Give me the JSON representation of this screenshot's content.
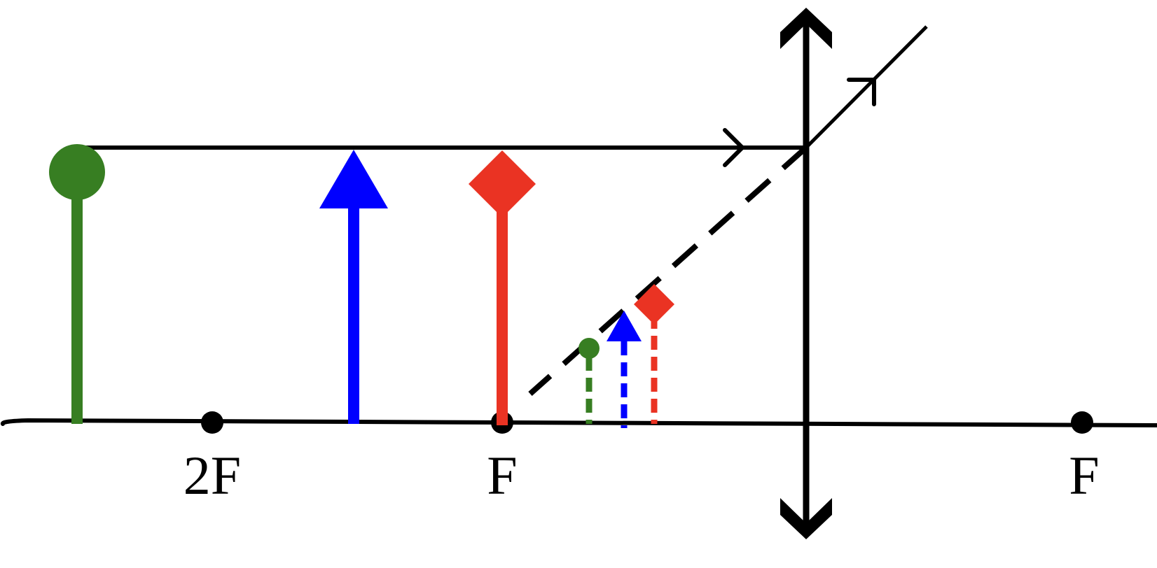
{
  "labels": {
    "two_f_left": "2F",
    "f_left": "F",
    "f_right": "F"
  },
  "colors": {
    "axis": "#000000",
    "object_circle": "#377e22",
    "object_triangle": "#0000ff",
    "object_diamond": "#ea3323",
    "background": "#ffffff"
  },
  "icons": {
    "lens": "converging-lens-icon",
    "object_circle": "circle-arrow-icon",
    "object_triangle": "triangle-arrow-icon",
    "object_diamond": "diamond-arrow-icon"
  },
  "rays": {
    "parallel_ray_style": "solid",
    "refracted_extension_style": "dashed"
  }
}
